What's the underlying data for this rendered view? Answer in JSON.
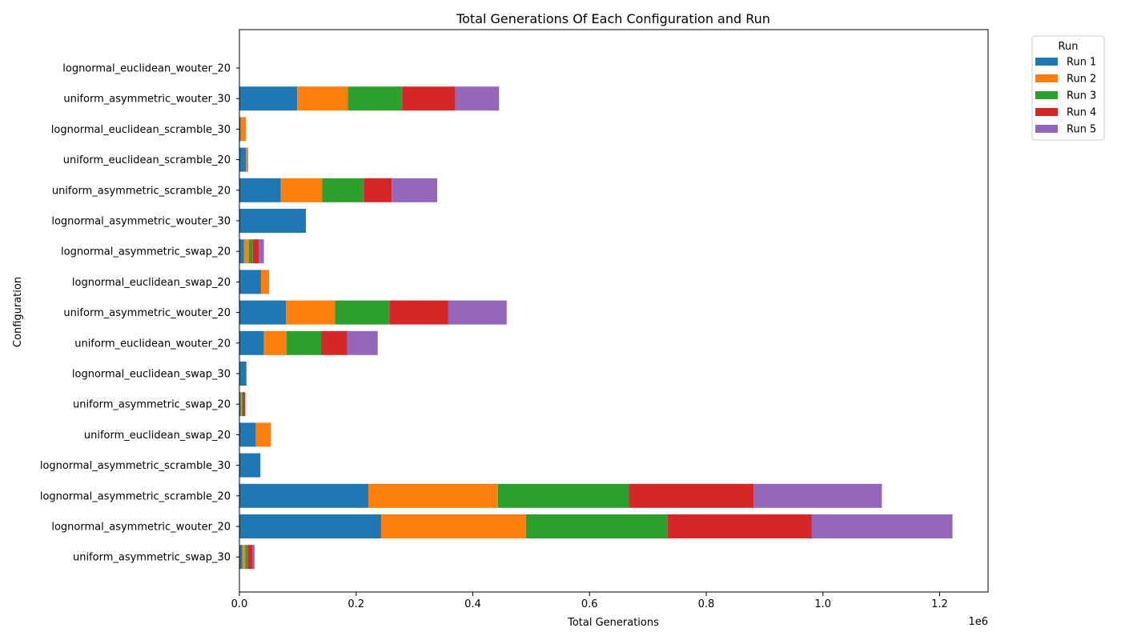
{
  "chart_data": {
    "type": "bar",
    "orientation": "horizontal",
    "stacked": true,
    "title": "Total Generations Of Each Configuration and Run",
    "xlabel": "Total Generations",
    "ylabel": "Configuration",
    "x_offset_label": "1e6",
    "xlim": [
      0,
      1283000
    ],
    "xticks": [
      0,
      200000,
      400000,
      600000,
      800000,
      1000000,
      1200000
    ],
    "xtick_labels": [
      "0.0",
      "0.2",
      "0.4",
      "0.6",
      "0.8",
      "1.0",
      "1.2"
    ],
    "grid": false,
    "legend": {
      "title": "Run",
      "placement": "outside-top-right"
    },
    "categories": [
      "lognormal_euclidean_wouter_20",
      "uniform_asymmetric_wouter_30",
      "lognormal_euclidean_scramble_30",
      "uniform_euclidean_scramble_20",
      "uniform_asymmetric_scramble_20",
      "lognormal_asymmetric_wouter_30",
      "lognormal_asymmetric_swap_20",
      "lognormal_euclidean_swap_20",
      "uniform_asymmetric_wouter_20",
      "uniform_euclidean_wouter_20",
      "lognormal_euclidean_swap_30",
      "uniform_asymmetric_swap_20",
      "uniform_euclidean_swap_20",
      "lognormal_asymmetric_scramble_30",
      "lognormal_asymmetric_scramble_20",
      "lognormal_asymmetric_wouter_20",
      "uniform_asymmetric_swap_30"
    ],
    "series": [
      {
        "name": "Run 1",
        "color": "#1f77b4",
        "values": [
          0,
          99000,
          2000,
          11000,
          71000,
          114000,
          8000,
          37000,
          80000,
          42000,
          12000,
          2000,
          28000,
          36000,
          221000,
          243000,
          5000
        ]
      },
      {
        "name": "Run 2",
        "color": "#ff7f0e",
        "values": [
          0,
          87000,
          9000,
          4000,
          71000,
          0,
          8000,
          14000,
          84000,
          39000,
          0,
          2000,
          26000,
          0,
          222000,
          248000,
          5000
        ]
      },
      {
        "name": "Run 3",
        "color": "#2ca02c",
        "values": [
          0,
          93000,
          0,
          0,
          71000,
          0,
          7000,
          0,
          93000,
          59000,
          0,
          2000,
          0,
          0,
          224000,
          243000,
          5000
        ]
      },
      {
        "name": "Run 4",
        "color": "#d62728",
        "values": [
          0,
          91000,
          0,
          0,
          48000,
          0,
          10000,
          0,
          101000,
          45000,
          0,
          4000,
          0,
          0,
          214000,
          247000,
          7000
        ]
      },
      {
        "name": "Run 5",
        "color": "#9467bd",
        "values": [
          0,
          75000,
          0,
          0,
          78000,
          0,
          9000,
          0,
          100000,
          52000,
          0,
          0,
          0,
          0,
          220000,
          241000,
          4000
        ]
      }
    ]
  }
}
